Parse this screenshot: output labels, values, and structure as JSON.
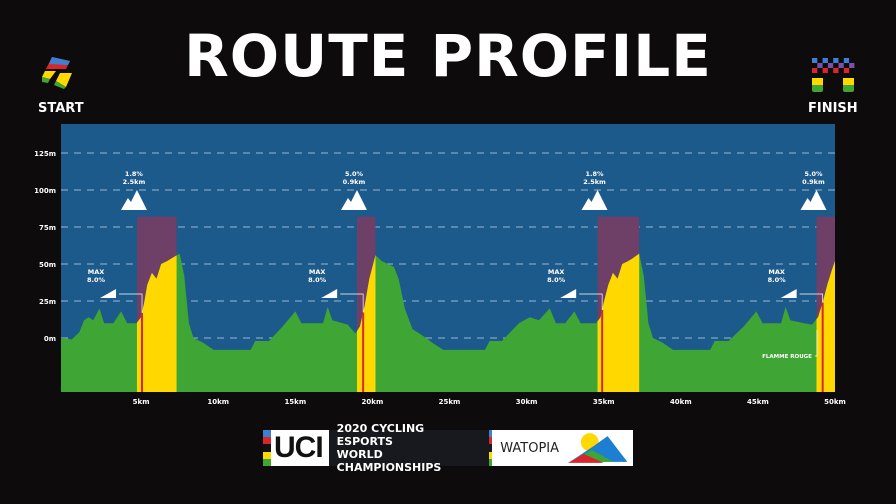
{
  "header": {
    "title": "ROUTE PROFILE",
    "start_label": "START",
    "finish_label": "FINISH"
  },
  "footer": {
    "uci": "UCI",
    "line1": "2020 CYCLING ESPORTS",
    "line2": "WORLD CHAMPIONSHIPS",
    "partner": "WATOPIA"
  },
  "colors": {
    "background": "#0d0b0b",
    "sky": "#1c5a8c",
    "terrain": "#3fa535",
    "climb": "#ffd800",
    "kom_zone": "#6e3f67",
    "marker": "#d8262b"
  },
  "chart_data": {
    "type": "area",
    "xlabel": "",
    "ylabel": "",
    "xlim": [
      0,
      50
    ],
    "ylim": [
      -36,
      145
    ],
    "x_ticks": [
      "5km",
      "10km",
      "15km",
      "20km",
      "25km",
      "30km",
      "35km",
      "40km",
      "45km",
      "50km"
    ],
    "x_tick_values": [
      5,
      10,
      15,
      20,
      25,
      30,
      35,
      40,
      45,
      50
    ],
    "y_ticks": [
      "0m",
      "25m",
      "50m",
      "75m",
      "100m",
      "125m"
    ],
    "y_tick_values": [
      0,
      25,
      50,
      75,
      100,
      125
    ],
    "grid": "horizontal-dashed",
    "profile": [
      [
        0,
        0
      ],
      [
        0.5,
        -1
      ],
      [
        1,
        4
      ],
      [
        1.3,
        12
      ],
      [
        1.6,
        14
      ],
      [
        1.9,
        12
      ],
      [
        2.3,
        20
      ],
      [
        2.6,
        10
      ],
      [
        3.2,
        10
      ],
      [
        3.7,
        18
      ],
      [
        4.1,
        10
      ],
      [
        4.7,
        10
      ],
      [
        5.0,
        14
      ],
      [
        5.2,
        24
      ],
      [
        5.4,
        36
      ],
      [
        5.7,
        44
      ],
      [
        6.0,
        40
      ],
      [
        6.3,
        50
      ],
      [
        6.7,
        52
      ],
      [
        7.0,
        54
      ],
      [
        7.5,
        57
      ],
      [
        7.8,
        42
      ],
      [
        8.1,
        10
      ],
      [
        8.4,
        0
      ],
      [
        9.0,
        -3
      ],
      [
        9.7,
        -8
      ],
      [
        12.1,
        -8
      ],
      [
        12.4,
        -2
      ],
      [
        13.3,
        -2
      ],
      [
        14.2,
        8
      ],
      [
        15.0,
        18
      ],
      [
        15.4,
        10
      ],
      [
        16.8,
        10
      ],
      [
        17.1,
        21
      ],
      [
        17.4,
        12
      ],
      [
        18.4,
        9
      ],
      [
        18.9,
        3
      ],
      [
        19.2,
        8
      ],
      [
        19.5,
        22
      ],
      [
        19.8,
        40
      ],
      [
        20.2,
        56
      ],
      [
        20.6,
        52
      ],
      [
        21.0,
        50
      ],
      [
        21.4,
        48
      ],
      [
        21.7,
        40
      ],
      [
        22.1,
        20
      ],
      [
        22.6,
        6
      ],
      [
        23.2,
        2
      ],
      [
        24.0,
        -4
      ],
      [
        24.6,
        -8
      ],
      [
        27.3,
        -8
      ],
      [
        27.6,
        -2
      ],
      [
        28.4,
        -2
      ],
      [
        29.5,
        10
      ],
      [
        30.2,
        14
      ],
      [
        30.8,
        12
      ],
      [
        31.5,
        20
      ],
      [
        31.9,
        10
      ],
      [
        32.5,
        10
      ],
      [
        33.1,
        18
      ],
      [
        33.5,
        10
      ],
      [
        34.5,
        10
      ],
      [
        34.8,
        14
      ],
      [
        35.0,
        24
      ],
      [
        35.3,
        36
      ],
      [
        35.6,
        44
      ],
      [
        35.9,
        40
      ],
      [
        36.2,
        50
      ],
      [
        36.6,
        52
      ],
      [
        36.9,
        54
      ],
      [
        37.3,
        57
      ],
      [
        37.6,
        42
      ],
      [
        37.9,
        10
      ],
      [
        38.2,
        0
      ],
      [
        38.8,
        -3
      ],
      [
        39.5,
        -8
      ],
      [
        41.9,
        -8
      ],
      [
        42.2,
        -2
      ],
      [
        43.1,
        -2
      ],
      [
        44.1,
        8
      ],
      [
        44.9,
        18
      ],
      [
        45.3,
        10
      ],
      [
        46.5,
        10
      ],
      [
        46.8,
        21
      ],
      [
        47.1,
        12
      ],
      [
        48.0,
        10
      ],
      [
        48.5,
        9
      ],
      [
        48.9,
        14
      ],
      [
        49.2,
        24
      ],
      [
        49.5,
        36
      ],
      [
        49.8,
        46
      ],
      [
        50,
        52
      ]
    ],
    "climbs": [
      {
        "start": 4.73,
        "end": 7.3,
        "label1": "1.8%",
        "label2": "2.5km",
        "max": "MAX",
        "max_value": "8.0%",
        "marker": 5.06
      },
      {
        "start": 19.0,
        "end": 20.2,
        "label1": "5.0%",
        "label2": "0.9km",
        "max": "MAX",
        "max_value": "8.0%",
        "marker": 19.4
      },
      {
        "start": 34.6,
        "end": 37.3,
        "label1": "1.8%",
        "label2": "2.5km",
        "max": "MAX",
        "max_value": "8.0%",
        "marker": 34.9
      },
      {
        "start": 48.8,
        "end": 50,
        "label1": "5.0%",
        "label2": "0.9km",
        "max": "MAX",
        "max_value": "8.0%",
        "marker": 49.2
      }
    ],
    "kom_zone_top": 82,
    "flamme_rouge": {
      "label": "FLAMME ROUGE",
      "km": 48.7
    }
  }
}
